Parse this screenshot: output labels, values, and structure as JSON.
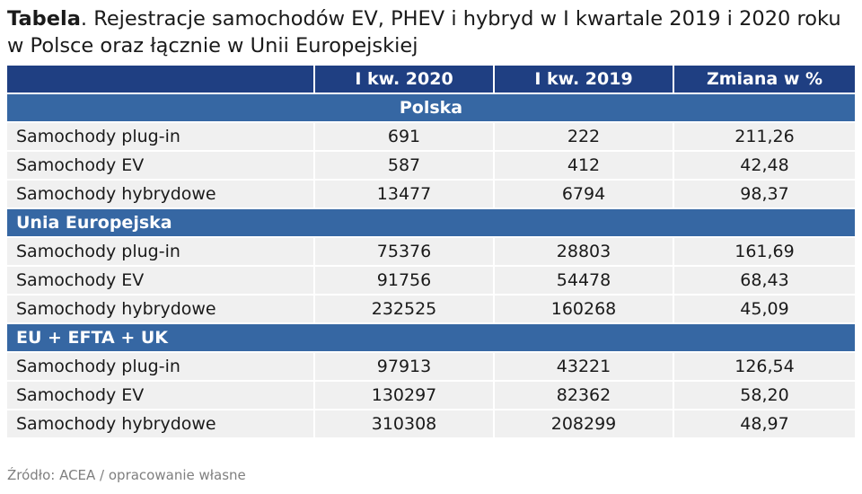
{
  "title": {
    "lead": "Tabela",
    "text": ".  Rejestracje samochodów EV, PHEV i hybryd w I kwartale 2019 i 2020 roku w Polsce oraz łącznie w Unii Europejskiej"
  },
  "table": {
    "headers": [
      "",
      "I kw. 2020",
      "I kw. 2019",
      "Zmiana w %"
    ],
    "sections": [
      {
        "name": "Polska",
        "rows": [
          {
            "label": "Samochody plug-in",
            "q1_2020": "691",
            "q1_2019": "222",
            "change": "211,26"
          },
          {
            "label": "Samochody EV",
            "q1_2020": "587",
            "q1_2019": "412",
            "change": "42,48"
          },
          {
            "label": "Samochody hybrydowe",
            "q1_2020": "13477",
            "q1_2019": "6794",
            "change": "98,37"
          }
        ]
      },
      {
        "name": "Unia Europejska",
        "rows": [
          {
            "label": "Samochody plug-in",
            "q1_2020": "75376",
            "q1_2019": "28803",
            "change": "161,69"
          },
          {
            "label": "Samochody EV",
            "q1_2020": "91756",
            "q1_2019": "54478",
            "change": "68,43"
          },
          {
            "label": "Samochody hybrydowe",
            "q1_2020": "232525",
            "q1_2019": "160268",
            "change": "45,09"
          }
        ]
      },
      {
        "name": "EU + EFTA + UK",
        "rows": [
          {
            "label": "Samochody plug-in",
            "q1_2020": "97913",
            "q1_2019": "43221",
            "change": "126,54"
          },
          {
            "label": "Samochody EV",
            "q1_2020": "130297",
            "q1_2019": "82362",
            "change": "58,20"
          },
          {
            "label": "Samochody hybrydowe",
            "q1_2020": "310308",
            "q1_2019": "208299",
            "change": "48,97"
          }
        ]
      }
    ]
  },
  "source": "Źródło: ACEA / opracowanie własne",
  "colors": {
    "header_bg": "#1f3f82",
    "section_bg": "#3667a3",
    "row_bg": "#f0f0f0"
  }
}
